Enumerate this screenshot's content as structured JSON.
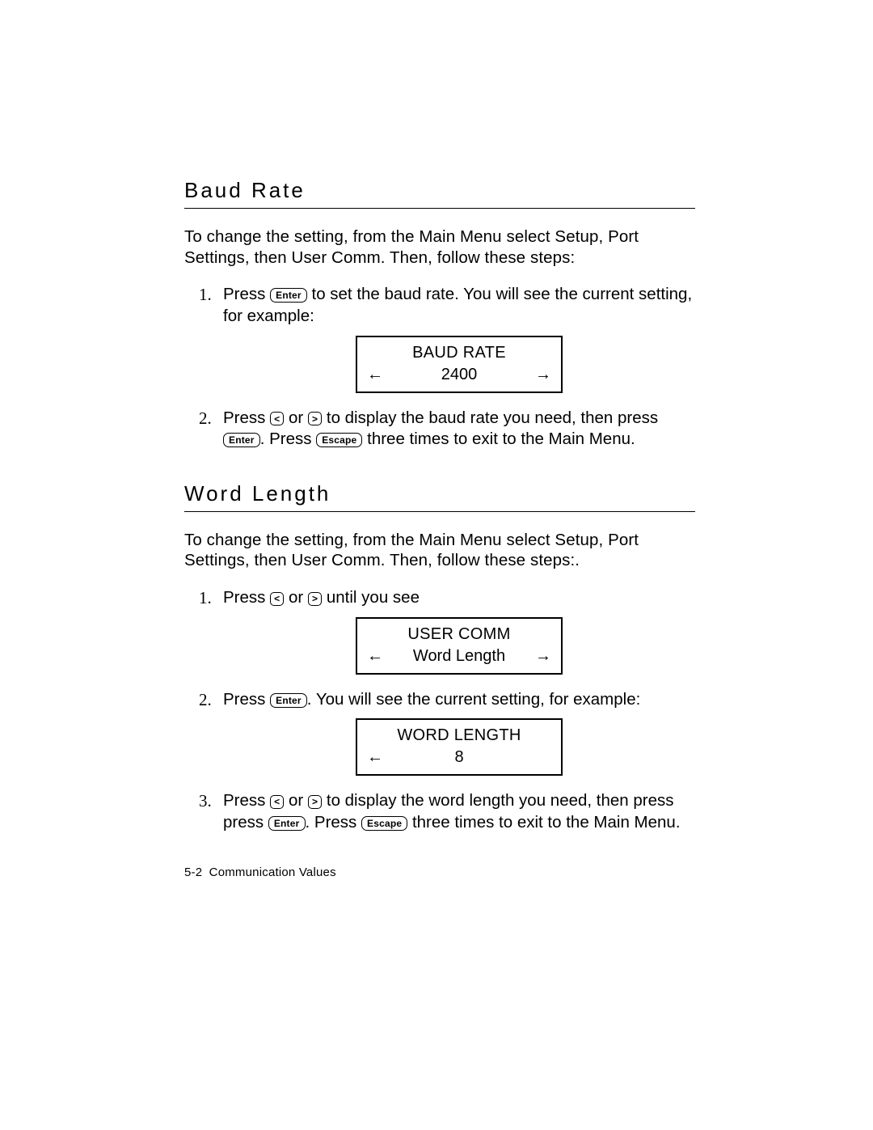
{
  "section1": {
    "title": "Baud Rate",
    "intro": "To change the setting, from the Main Menu select Setup, Port Settings, then User Comm.  Then, follow these steps:",
    "step1_a": "Press ",
    "step1_b": " to set the baud rate.  You will see the current setting, for example:",
    "lcd1_line1": "BAUD RATE",
    "lcd1_value": "2400",
    "step2_a": "Press ",
    "step2_b": " or ",
    "step2_c": " to display the baud rate you need, then press ",
    "step2_d": ".  Press ",
    "step2_e": " three times to exit to the Main Menu."
  },
  "section2": {
    "title": "Word Length",
    "intro": "To change the setting, from the Main Menu select Setup, Port Settings, then User Comm.  Then, follow these steps:.",
    "step1_a": "Press ",
    "step1_b": " or ",
    "step1_c": " until you see",
    "lcd1_line1": "USER COMM",
    "lcd1_value": "Word Length",
    "step2_a": "Press ",
    "step2_b": ".  You will see the current setting, for example:",
    "lcd2_line1": "WORD LENGTH",
    "lcd2_value": "8",
    "step3_a": "Press ",
    "step3_b": " or ",
    "step3_c": " to display the word length you need, then press ",
    "step3_d": ".  Press ",
    "step3_e": " three times to exit to the Main Menu."
  },
  "keys": {
    "enter": "Enter",
    "escape": "Escape",
    "left": "<",
    "right": ">"
  },
  "arrows": {
    "left": "←",
    "right": "→"
  },
  "footer": {
    "page": "5-2",
    "title": "Communication Values"
  },
  "nums": {
    "n1": "1.",
    "n2": "2.",
    "n3": "3."
  }
}
